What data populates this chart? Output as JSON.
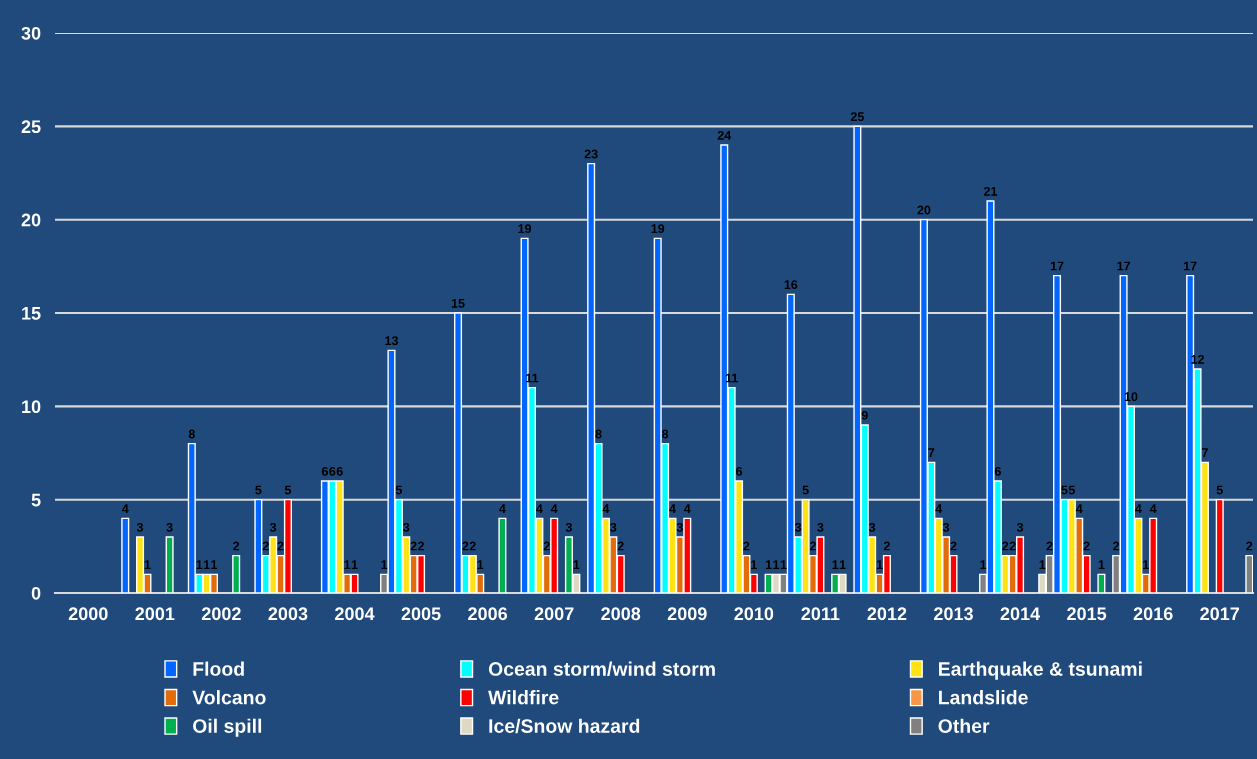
{
  "chart_data": {
    "type": "bar",
    "categories": [
      "2000",
      "2001",
      "2002",
      "2003",
      "2004",
      "2005",
      "2006",
      "2007",
      "2008",
      "2009",
      "2010",
      "2011",
      "2012",
      "2013",
      "2014",
      "2015",
      "2016",
      "2017"
    ],
    "series": [
      {
        "name": "Flood",
        "color": "#0066ff",
        "values": [
          null,
          4,
          8,
          5,
          6,
          13,
          15,
          19,
          23,
          19,
          24,
          16,
          25,
          20,
          21,
          17,
          17,
          17
        ]
      },
      {
        "name": "Ocean storm/wind storm",
        "color": "#00ffff",
        "values": [
          null,
          null,
          1,
          2,
          6,
          5,
          2,
          11,
          8,
          8,
          11,
          3,
          9,
          7,
          6,
          5,
          10,
          12
        ]
      },
      {
        "name": "Earthquake & tsunami",
        "color": "#ffe214",
        "values": [
          null,
          3,
          1,
          3,
          6,
          3,
          2,
          4,
          4,
          4,
          6,
          5,
          3,
          4,
          2,
          5,
          4,
          7
        ]
      },
      {
        "name": "Volcano",
        "color": "#e36c0a",
        "values": [
          null,
          1,
          1,
          2,
          1,
          2,
          1,
          2,
          3,
          3,
          2,
          2,
          1,
          3,
          2,
          4,
          1,
          null
        ]
      },
      {
        "name": "Wildfire",
        "color": "#ff0000",
        "values": [
          null,
          null,
          null,
          5,
          1,
          2,
          null,
          4,
          2,
          4,
          1,
          3,
          2,
          2,
          3,
          2,
          4,
          5
        ]
      },
      {
        "name": "Landslide",
        "color": "#f79646",
        "values": [
          null,
          null,
          null,
          null,
          null,
          null,
          null,
          null,
          null,
          null,
          null,
          null,
          null,
          null,
          null,
          null,
          null,
          null
        ]
      },
      {
        "name": "Oil spill",
        "color": "#00b050",
        "values": [
          null,
          3,
          2,
          null,
          null,
          null,
          4,
          3,
          null,
          null,
          1,
          1,
          null,
          null,
          null,
          1,
          null,
          null
        ]
      },
      {
        "name": "Ice/Snow hazard",
        "color": "#ddd9c3",
        "values": [
          null,
          null,
          null,
          null,
          null,
          null,
          null,
          1,
          null,
          null,
          1,
          1,
          null,
          null,
          1,
          null,
          null,
          null
        ]
      },
      {
        "name": "Other",
        "color": "#808080",
        "values": [
          null,
          null,
          null,
          null,
          1,
          null,
          null,
          null,
          null,
          null,
          1,
          null,
          null,
          1,
          2,
          2,
          null,
          2
        ]
      }
    ],
    "ylim": [
      0,
      30
    ],
    "yticks": [
      0,
      5,
      10,
      15,
      20,
      25,
      30
    ],
    "grid": "y",
    "legend": "bottom",
    "data_labels": true
  }
}
